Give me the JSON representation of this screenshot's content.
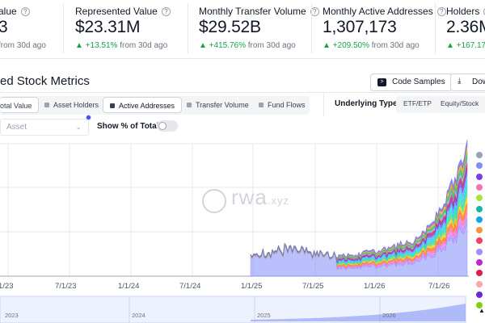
{
  "stats": [
    {
      "label": "alue",
      "value": "3",
      "change_pos": "",
      "change_rest": "from 30d ago"
    },
    {
      "label": "Represented Value",
      "value": "$23.31M",
      "change_pos": "▲ +13.51%",
      "change_rest": "from 30d ago"
    },
    {
      "label": "Monthly Transfer Volume",
      "value": "$29.52B",
      "change_pos": "▲ +415.76%",
      "change_rest": "from 30d ago"
    },
    {
      "label": "Monthly Active Addresses",
      "value": "1,307,173",
      "change_pos": "▲ +209.50%",
      "change_rest": "from 30d ago"
    },
    {
      "label": "Holders",
      "value": "2.36M",
      "change_pos": "▲ +167.17%",
      "change_rest": ""
    }
  ],
  "section": {
    "title": "ed Stock Metrics",
    "code_samples": "Code Samples",
    "download": "Dow"
  },
  "tabs": [
    {
      "label": "otal Value"
    },
    {
      "label": "Asset Holders"
    },
    {
      "label": "Active Addresses"
    },
    {
      "label": "Transfer Volume"
    },
    {
      "label": "Fund Flows"
    }
  ],
  "underlying": {
    "label": "Underlying Type",
    "options": [
      "ETF/ETP",
      "Equity/Stock"
    ]
  },
  "filters": {
    "asset_placeholder": "Asset",
    "show_pct_label": "Show % of Total"
  },
  "watermark": {
    "main": "rwa",
    "suffix": ".xyz"
  },
  "chart_data": {
    "type": "area",
    "stacked": true,
    "x_ticks": [
      "1/23",
      "7/1/23",
      "1/1/24",
      "7/1/24",
      "1/1/25",
      "7/1/25",
      "1/1/26",
      "7/1/26"
    ],
    "navigator_ticks": [
      "2023",
      "2024",
      "2025",
      "2026"
    ],
    "grid": true,
    "legend_placement": "right",
    "series_colors": [
      "#818cf8",
      "#a78bfa",
      "#e879f9",
      "#fb7185",
      "#f97316",
      "#facc15",
      "#4ade80",
      "#2dd4bf",
      "#22d3ee",
      "#60a5fa",
      "#7c3aed",
      "#be185d",
      "#9ca3af",
      "#10b981",
      "#f59e0b",
      "#6366f1"
    ],
    "legend_colors": [
      "#94a3b8",
      "#818cf8",
      "#7c3aed",
      "#f472b6",
      "#a3e635",
      "#14b8a6",
      "#0ea5e9",
      "#fb923c",
      "#f43f5e",
      "#a78bfa",
      "#c026d3",
      "#e11d48",
      "#fda4af",
      "#6d28d9",
      "#84cc16",
      "#6b7280",
      "#4b5563",
      "#7c2d12",
      "#60a5fa",
      "#0f766e",
      "#ec4899",
      "#f59e0b",
      "#8b5cf6",
      "#fde047"
    ],
    "bottom_legend_value": "1"
  }
}
